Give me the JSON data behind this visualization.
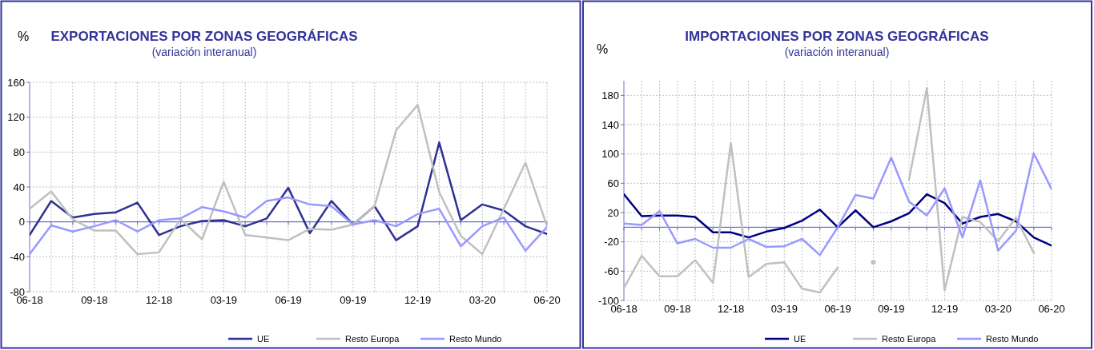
{
  "chart_data": [
    {
      "type": "line",
      "title": "EXPORTACIONES POR ZONAS GEOGRÁFICAS",
      "subtitle": "(variación interanual)",
      "ylabel": "%",
      "categories": [
        "06-18",
        null,
        null,
        "09-18",
        null,
        null,
        "12-18",
        null,
        null,
        "03-19",
        null,
        null,
        "06-19",
        null,
        null,
        "09-19",
        null,
        null,
        "12-19",
        null,
        null,
        "03-20",
        null,
        null,
        "06-20"
      ],
      "series": [
        {
          "name": "UE",
          "color": "#2e3192",
          "values": [
            -15,
            24,
            5,
            9,
            11,
            22,
            -15,
            -5,
            1,
            2,
            -5,
            4,
            39,
            -13,
            24,
            -3,
            18,
            -21,
            -5,
            91,
            2,
            20,
            13,
            -5,
            -14
          ]
        },
        {
          "name": "Resto Europa",
          "color": "#c0c0c0",
          "values": [
            15,
            35,
            3,
            -10,
            -10,
            -37,
            -35,
            3,
            -20,
            46,
            -15,
            -18,
            -21,
            -8,
            -9,
            -3,
            18,
            105,
            134,
            34,
            -16,
            -37,
            15,
            68,
            -5
          ]
        },
        {
          "name": "Resto Mundo",
          "color": "#9999ff",
          "values": [
            -37,
            -4,
            -11,
            -5,
            2,
            -11,
            2,
            4,
            17,
            12,
            5,
            24,
            28,
            20,
            18,
            -3,
            2,
            -5,
            9,
            15,
            -28,
            -5,
            5,
            -33,
            -6
          ]
        }
      ],
      "ylim": [
        -80,
        160
      ],
      "yticks": [
        -80,
        -40,
        0,
        40,
        80,
        120,
        160
      ],
      "ref_lines": [
        {
          "axis": "y",
          "value": 0,
          "color": "#5050c0"
        }
      ],
      "grid": true,
      "legend": "bottom",
      "line_style": "solid"
    },
    {
      "type": "line",
      "title": "IMPORTACIONES POR ZONAS GEOGRÁFICAS",
      "subtitle": "(variación interanual)",
      "ylabel": "%",
      "categories": [
        "06-18",
        null,
        null,
        "09-18",
        null,
        null,
        "12-18",
        null,
        null,
        "03-19",
        null,
        null,
        "06-19",
        null,
        null,
        "09-19",
        null,
        null,
        "12-19",
        null,
        null,
        "03-20",
        null,
        null,
        "06-20"
      ],
      "series": [
        {
          "name": "UE",
          "color": "#000080",
          "values": [
            45,
            15,
            16,
            16,
            14,
            -7,
            -7,
            -14,
            -6,
            -1,
            9,
            24,
            0,
            23,
            0,
            8,
            19,
            45,
            33,
            5,
            14,
            18,
            8,
            -14,
            -25
          ]
        },
        {
          "name": "Resto Europa",
          "color": "#c0c0c0",
          "values": [
            -83,
            -39,
            -67,
            -67,
            -45,
            -76,
            115,
            -68,
            -50,
            -48,
            -84,
            -89,
            -55,
            null,
            -48,
            null,
            65,
            190,
            -86,
            14,
            7,
            -19,
            13,
            -35,
            null
          ]
        },
        {
          "name": "Resto Mundo",
          "color": "#9999ff",
          "values": [
            5,
            3,
            22,
            -22,
            -16,
            -28,
            -28,
            -16,
            -27,
            -26,
            -16,
            -38,
            0,
            44,
            39,
            95,
            35,
            16,
            53,
            -14,
            64,
            -32,
            -5,
            101,
            52
          ]
        }
      ],
      "ylim": [
        -100,
        200
      ],
      "yticks": [
        -100,
        -60,
        -20,
        20,
        60,
        100,
        140,
        180
      ],
      "ref_lines": [
        {
          "axis": "y",
          "value": 0,
          "color": "#5050c0"
        }
      ],
      "grid": true,
      "legend": "bottom",
      "line_style": "solid"
    }
  ]
}
